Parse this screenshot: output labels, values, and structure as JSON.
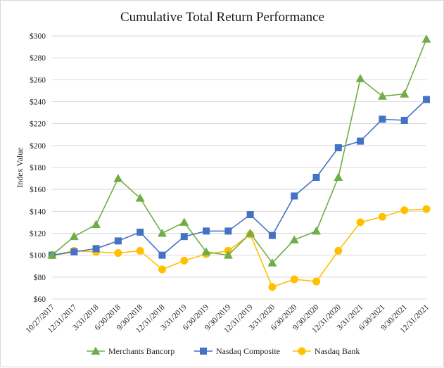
{
  "chart_data": {
    "type": "line",
    "title": "Cumulative Total Return Performance",
    "ylabel": "Index Value",
    "xlabel": "",
    "ylim": [
      60,
      300
    ],
    "ytick_step": 20,
    "ytick_prefix": "$",
    "grid": true,
    "legend_position": "bottom",
    "categories": [
      "10/27/2017",
      "12/31/2017",
      "3/31/2018",
      "6/30/2018",
      "9/30/2018",
      "12/31/2018",
      "3/31/2019",
      "6/30/2019",
      "9/30/2019",
      "12/31/2019",
      "3/31/2020",
      "6/30/2020",
      "9/30/2020",
      "12/31/2020",
      "3/31/2021",
      "6/30/2021",
      "9/30/2021",
      "12/31/2021"
    ],
    "series": [
      {
        "name": "Merchants Bancorp",
        "color": "#70ad47",
        "marker": "triangle",
        "values": [
          100,
          117,
          128,
          170,
          152,
          120,
          130,
          103,
          100,
          120,
          93,
          114,
          122,
          171,
          261,
          245,
          247,
          297
        ]
      },
      {
        "name": "Nasdaq Composite",
        "color": "#4472c4",
        "marker": "square",
        "values": [
          100,
          103,
          106,
          113,
          121,
          100,
          117,
          122,
          122,
          137,
          118,
          154,
          171,
          198,
          204,
          224,
          223,
          242
        ]
      },
      {
        "name": "Nasdaq Bank",
        "color": "#ffc000",
        "marker": "circle",
        "values": [
          100,
          104,
          103,
          102,
          104,
          87,
          95,
          101,
          104,
          119,
          71,
          78,
          76,
          104,
          130,
          135,
          141,
          142
        ]
      }
    ]
  }
}
